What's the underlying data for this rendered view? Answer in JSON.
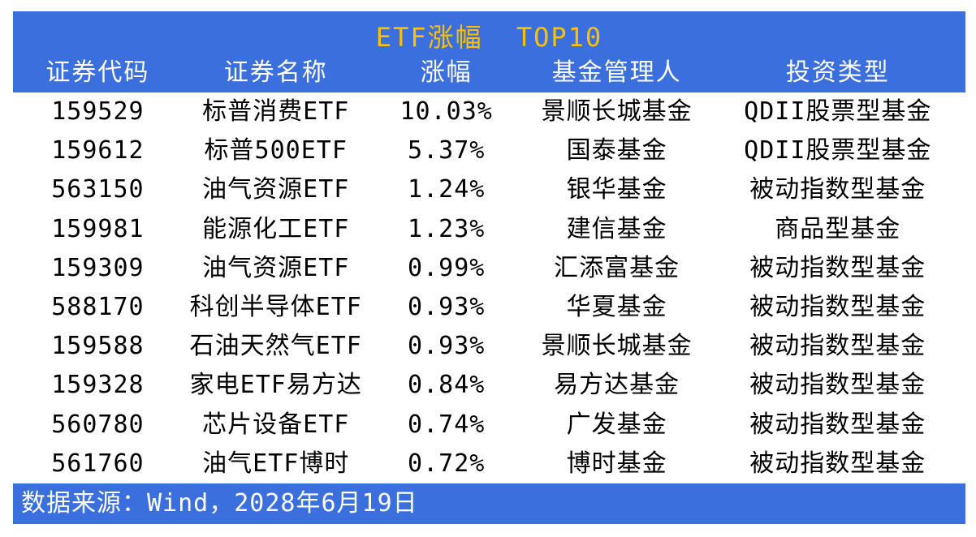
{
  "header": {
    "title": "ETF涨幅 TOP10"
  },
  "table": {
    "columns": [
      "证券代码",
      "证券名称",
      "涨幅",
      "基金管理人",
      "投资类型"
    ],
    "rows": [
      {
        "code": "159529",
        "name": "标普消费ETF",
        "change": "10.03%",
        "manager": "景顺长城基金",
        "type": "QDII股票型基金"
      },
      {
        "code": "159612",
        "name": "标普500ETF",
        "change": "5.37%",
        "manager": "国泰基金",
        "type": "QDII股票型基金"
      },
      {
        "code": "563150",
        "name": "油气资源ETF",
        "change": "1.24%",
        "manager": "银华基金",
        "type": "被动指数型基金"
      },
      {
        "code": "159981",
        "name": "能源化工ETF",
        "change": "1.23%",
        "manager": "建信基金",
        "type": "商品型基金"
      },
      {
        "code": "159309",
        "name": "油气资源ETF",
        "change": "0.99%",
        "manager": "汇添富基金",
        "type": "被动指数型基金"
      },
      {
        "code": "588170",
        "name": "科创半导体ETF",
        "change": "0.93%",
        "manager": "华夏基金",
        "type": "被动指数型基金"
      },
      {
        "code": "159588",
        "name": "石油天然气ETF",
        "change": "0.93%",
        "manager": "景顺长城基金",
        "type": "被动指数型基金"
      },
      {
        "code": "159328",
        "name": "家电ETF易方达",
        "change": "0.84%",
        "manager": "易方达基金",
        "type": "被动指数型基金"
      },
      {
        "code": "560780",
        "name": "芯片设备ETF",
        "change": "0.74%",
        "manager": "广发基金",
        "type": "被动指数型基金"
      },
      {
        "code": "561760",
        "name": "油气ETF博时",
        "change": "0.72%",
        "manager": "博时基金",
        "type": "被动指数型基金"
      }
    ]
  },
  "footer": {
    "source": "数据来源：Wind，2028年6月19日"
  },
  "colors": {
    "accent_blue": "#3B6FDE",
    "title_gold": "#FFC000",
    "body_text": "#000000",
    "background": "#FFFFFF"
  },
  "chart_data": {
    "type": "table",
    "title": "ETF涨幅 TOP10",
    "columns": [
      "证券代码",
      "证券名称",
      "涨幅",
      "基金管理人",
      "投资类型"
    ],
    "rows": [
      [
        "159529",
        "标普消费ETF",
        "10.03%",
        "景顺长城基金",
        "QDII股票型基金"
      ],
      [
        "159612",
        "标普500ETF",
        "5.37%",
        "国泰基金",
        "QDII股票型基金"
      ],
      [
        "563150",
        "油气资源ETF",
        "1.24%",
        "银华基金",
        "被动指数型基金"
      ],
      [
        "159981",
        "能源化工ETF",
        "1.23%",
        "建信基金",
        "商品型基金"
      ],
      [
        "159309",
        "油气资源ETF",
        "0.99%",
        "汇添富基金",
        "被动指数型基金"
      ],
      [
        "588170",
        "科创半导体ETF",
        "0.93%",
        "华夏基金",
        "被动指数型基金"
      ],
      [
        "159588",
        "石油天然气ETF",
        "0.93%",
        "景顺长城基金",
        "被动指数型基金"
      ],
      [
        "159328",
        "家电ETF易方达",
        "0.84%",
        "易方达基金",
        "被动指数型基金"
      ],
      [
        "560780",
        "芯片设备ETF",
        "0.74%",
        "广发基金",
        "被动指数型基金"
      ],
      [
        "561760",
        "油气ETF博时",
        "0.72%",
        "博时基金",
        "被动指数型基金"
      ]
    ],
    "change_values_pct": [
      10.03,
      5.37,
      1.24,
      1.23,
      0.99,
      0.93,
      0.93,
      0.84,
      0.74,
      0.72
    ],
    "source_note": "数据来源：Wind，2028年6月19日",
    "layout": {
      "header_background": "#3B6FDE",
      "title_color": "#FFC000",
      "gridlines": false
    }
  }
}
